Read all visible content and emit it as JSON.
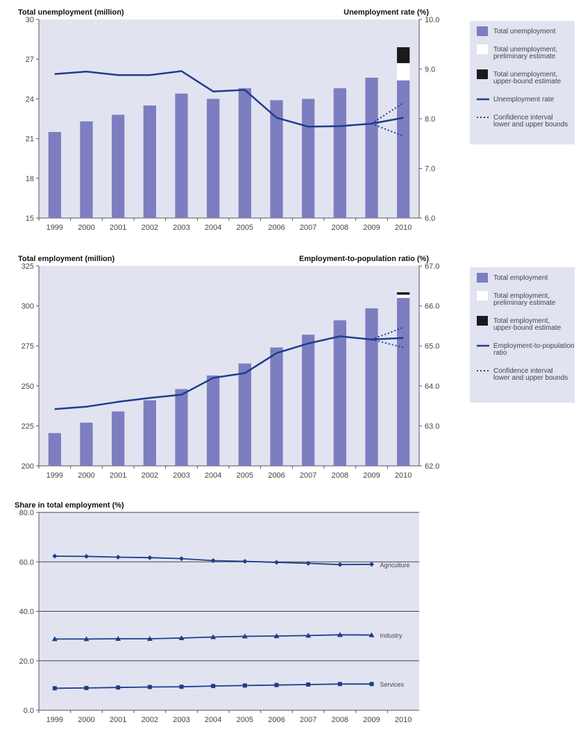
{
  "chart_data": [
    {
      "type": "bar",
      "title_left": "Total unemployment (million)",
      "title_right": "Unemployment rate (%)",
      "categories": [
        "1999",
        "2000",
        "2001",
        "2002",
        "2003",
        "2004",
        "2005",
        "2006",
        "2007",
        "2008",
        "2009",
        "2010"
      ],
      "ylim": [
        15,
        30
      ],
      "y_ticks": [
        "15",
        "18",
        "21",
        "24",
        "27",
        "30"
      ],
      "y2lim": [
        6.0,
        10.0
      ],
      "y2_ticks": [
        "6.0",
        "7.0",
        "8.0",
        "9.0",
        "10.0"
      ],
      "bars": [
        21.5,
        22.3,
        22.8,
        23.5,
        24.4,
        24.0,
        24.8,
        23.9,
        24.0,
        24.8,
        25.6,
        25.4
      ],
      "preliminary": {
        "category": "2010",
        "from": 25.4,
        "to": 26.7
      },
      "upper_bound": {
        "category": "2010",
        "from": 26.7,
        "to": 27.9
      },
      "rate_line": [
        8.9,
        8.95,
        8.88,
        8.88,
        8.96,
        8.55,
        8.58,
        8.02,
        7.84,
        7.85,
        7.9,
        8.02
      ],
      "confidence_lower": {
        "x": [
          "2009",
          "2010"
        ],
        "values": [
          7.9,
          7.65
        ]
      },
      "confidence_upper": {
        "x": [
          "2009",
          "2010"
        ],
        "values": [
          7.9,
          8.32
        ]
      },
      "legend": [
        {
          "kind": "bar",
          "label": "Total unemployment"
        },
        {
          "kind": "prelim",
          "label": "Total unemployment, preliminary estimate"
        },
        {
          "kind": "upper",
          "label": "Total unemployment, upper-bound estimate"
        },
        {
          "kind": "line",
          "label": "Unemployment rate"
        },
        {
          "kind": "dotted",
          "label": "Confidence interval lower and upper bounds"
        }
      ]
    },
    {
      "type": "bar",
      "title_left": "Total employment (million)",
      "title_right": "Employment-to-population ratio (%)",
      "categories": [
        "1999",
        "2000",
        "2001",
        "2002",
        "2003",
        "2004",
        "2005",
        "2006",
        "2007",
        "2008",
        "2009",
        "2010"
      ],
      "ylim": [
        200,
        325
      ],
      "y_ticks": [
        "200",
        "225",
        "250",
        "275",
        "300",
        "325"
      ],
      "y2lim": [
        62.0,
        67.0
      ],
      "y2_ticks": [
        "62.0",
        "63.0",
        "64.0",
        "65.0",
        "66.0",
        "67.0"
      ],
      "bars": [
        220.5,
        227,
        234,
        241,
        248,
        256.5,
        264,
        274,
        282,
        291,
        298.5,
        305
      ],
      "preliminary": {
        "category": "2010",
        "from": 305,
        "to": 307
      },
      "upper_bound": {
        "category": "2010",
        "from": 307,
        "to": 308.5
      },
      "rate_line": [
        63.42,
        63.48,
        63.6,
        63.7,
        63.78,
        64.2,
        64.32,
        64.82,
        65.06,
        65.24,
        65.16,
        65.2
      ],
      "confidence_lower": {
        "x": [
          "2009",
          "2010"
        ],
        "values": [
          65.16,
          64.96
        ]
      },
      "confidence_upper": {
        "x": [
          "2009",
          "2010"
        ],
        "values": [
          65.16,
          65.46
        ]
      },
      "legend": [
        {
          "kind": "bar",
          "label": "Total employment"
        },
        {
          "kind": "prelim",
          "label": "Total employment, preliminary estimate"
        },
        {
          "kind": "upper",
          "label": "Total employment, upper-bound estimate"
        },
        {
          "kind": "line",
          "label": "Employment-to-population ratio"
        },
        {
          "kind": "dotted",
          "label": "Confidence interval lower and upper bounds"
        }
      ]
    },
    {
      "type": "line",
      "title": "Share in total employment (%)",
      "categories": [
        "1999",
        "2000",
        "2001",
        "2002",
        "2003",
        "2004",
        "2005",
        "2006",
        "2007",
        "2008",
        "2009",
        "2010"
      ],
      "ylim": [
        0,
        80
      ],
      "y_ticks": [
        "0.0",
        "20.0",
        "40.0",
        "60.0",
        "80.0"
      ],
      "series": [
        {
          "name": "Agriculture",
          "marker": "diamond",
          "values": [
            62.3,
            62.2,
            61.9,
            61.7,
            61.3,
            60.5,
            60.2,
            59.8,
            59.4,
            58.9,
            59.0,
            null
          ]
        },
        {
          "name": "Industry",
          "marker": "triangle",
          "values": [
            28.8,
            28.8,
            28.9,
            28.9,
            29.2,
            29.6,
            29.9,
            30.0,
            30.2,
            30.5,
            30.4,
            null
          ]
        },
        {
          "name": "Services",
          "marker": "square",
          "values": [
            8.9,
            9.0,
            9.2,
            9.4,
            9.5,
            9.8,
            10.0,
            10.2,
            10.4,
            10.6,
            10.6,
            null
          ]
        }
      ]
    }
  ],
  "colors": {
    "panel": "#e1e3f1",
    "bar": "#7c7ec0",
    "line": "#1d3c8c",
    "upper": "#1a1a1a",
    "prelim": "#ffffff"
  }
}
